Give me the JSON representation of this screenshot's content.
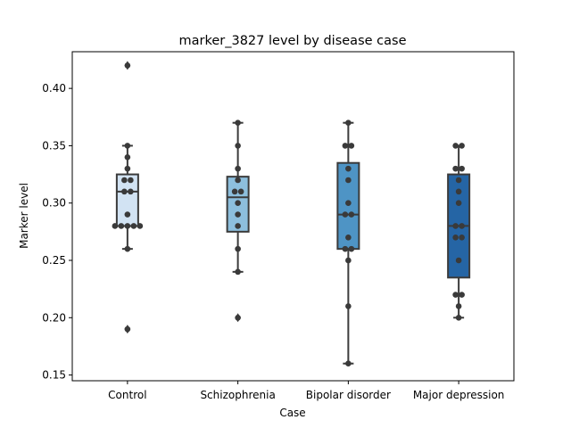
{
  "chart_data": {
    "type": "box",
    "title": "marker_3827 level by disease case",
    "xlabel": "Case",
    "ylabel": "Marker level",
    "ylim": [
      0.145,
      0.432
    ],
    "yticks": [
      0.15,
      0.2,
      0.25,
      0.3,
      0.35,
      0.4
    ],
    "ytick_labels": [
      "0.15",
      "0.20",
      "0.25",
      "0.30",
      "0.35",
      "0.40"
    ],
    "categories": [
      "Control",
      "Schizophrenia",
      "Bipolar disorder",
      "Major depression"
    ],
    "colors": [
      "#d2e3f3",
      "#8dbfdd",
      "#4e94c5",
      "#2565a5"
    ],
    "boxes": [
      {
        "q1": 0.28,
        "median": 0.31,
        "q3": 0.325,
        "whisker_low": 0.26,
        "whisker_high": 0.35,
        "outliers": [
          0.42,
          0.19
        ]
      },
      {
        "q1": 0.275,
        "median": 0.305,
        "q3": 0.323,
        "whisker_low": 0.24,
        "whisker_high": 0.37,
        "outliers": [
          0.2
        ]
      },
      {
        "q1": 0.26,
        "median": 0.29,
        "q3": 0.335,
        "whisker_low": 0.16,
        "whisker_high": 0.37,
        "outliers": []
      },
      {
        "q1": 0.235,
        "median": 0.28,
        "q3": 0.325,
        "whisker_low": 0.2,
        "whisker_high": 0.35,
        "outliers": []
      }
    ],
    "points": [
      [
        0.42,
        0.35,
        0.34,
        0.33,
        0.32,
        0.32,
        0.31,
        0.31,
        0.29,
        0.28,
        0.28,
        0.28,
        0.28,
        0.28,
        0.26,
        0.19
      ],
      [
        0.37,
        0.35,
        0.33,
        0.32,
        0.31,
        0.31,
        0.3,
        0.29,
        0.28,
        0.26,
        0.24,
        0.2
      ],
      [
        0.37,
        0.35,
        0.35,
        0.33,
        0.32,
        0.3,
        0.29,
        0.29,
        0.27,
        0.26,
        0.26,
        0.25,
        0.21,
        0.16
      ],
      [
        0.35,
        0.35,
        0.33,
        0.33,
        0.32,
        0.31,
        0.3,
        0.28,
        0.28,
        0.27,
        0.27,
        0.25,
        0.22,
        0.22,
        0.21,
        0.2
      ]
    ],
    "grid": false,
    "legend": "none"
  }
}
